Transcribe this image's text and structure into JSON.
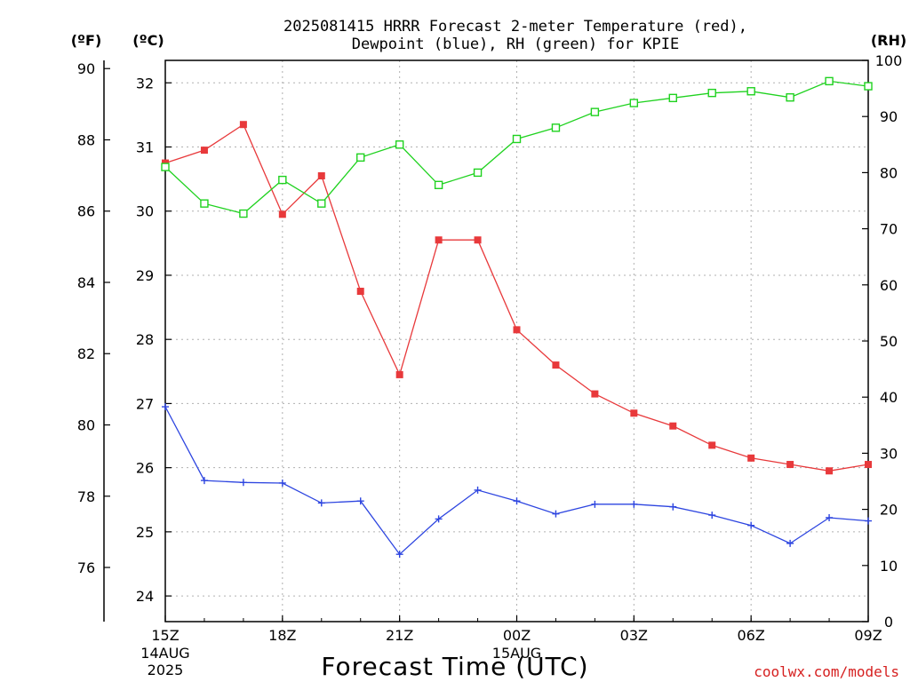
{
  "chart_data": {
    "type": "line",
    "title_line1": "2025081415 HRRR Forecast 2-meter Temperature (red),",
    "title_line2": "Dewpoint (blue), RH (green) for KPIE",
    "xlabel": "Forecast Time (UTC)",
    "credit": "coolwx.com/models",
    "unit_f_label": "(ºF)",
    "unit_c_label": "(ºC)",
    "unit_rh_label": "(RH)",
    "x_ticks": [
      "15Z",
      "18Z",
      "21Z",
      "00Z",
      "03Z",
      "06Z",
      "09Z"
    ],
    "x_tick_hours": [
      0,
      3,
      6,
      9,
      12,
      15,
      18
    ],
    "date_labels": [
      {
        "hour": 0,
        "day": "14AUG",
        "year": "2025"
      },
      {
        "hour": 9,
        "day": "15AUG",
        "year": ""
      }
    ],
    "f_ticks": [
      76,
      78,
      80,
      82,
      84,
      86,
      88,
      90
    ],
    "c_ticks": [
      24,
      25,
      26,
      27,
      28,
      29,
      30,
      31,
      32
    ],
    "rh_ticks": [
      0,
      10,
      20,
      30,
      40,
      50,
      60,
      70,
      80,
      90,
      100
    ],
    "celsius_range": [
      23.6,
      32.35
    ],
    "rh_range": [
      0,
      100
    ],
    "x_range_hours": [
      0,
      18
    ],
    "grid": true,
    "colors": {
      "temperature": "#e8393b",
      "dewpoint": "#2d45e0",
      "rh": "#1fd21f"
    },
    "series": [
      {
        "name": "Temperature",
        "unit": "C",
        "marker": "filled-square",
        "x": [
          0,
          1,
          2,
          3,
          4,
          5,
          6,
          7,
          8,
          9,
          10,
          11,
          12,
          13,
          14,
          15,
          16,
          17,
          18
        ],
        "values": [
          30.75,
          30.95,
          31.35,
          29.95,
          30.55,
          28.75,
          27.45,
          29.55,
          29.55,
          28.15,
          27.6,
          27.15,
          26.85,
          26.65,
          26.35,
          26.15,
          26.05,
          25.95,
          26.05
        ]
      },
      {
        "name": "Dewpoint",
        "unit": "C",
        "marker": "plus",
        "x": [
          0,
          1,
          2,
          3,
          4,
          5,
          6,
          7,
          8,
          9,
          10,
          11,
          12,
          13,
          14,
          15,
          16,
          17,
          18
        ],
        "values": [
          26.95,
          25.8,
          25.77,
          25.76,
          25.45,
          25.48,
          24.65,
          25.2,
          25.65,
          25.48,
          25.28,
          25.43,
          25.43,
          25.39,
          25.26,
          25.1,
          24.82,
          25.22,
          25.17
        ]
      },
      {
        "name": "RH",
        "unit": "%",
        "marker": "open-square",
        "x": [
          0,
          1,
          2,
          3,
          4,
          5,
          6,
          7,
          8,
          9,
          10,
          11,
          12,
          13,
          14,
          15,
          16,
          17,
          18
        ],
        "values": [
          81,
          74.5,
          72.7,
          78.7,
          74.5,
          82.7,
          85,
          77.8,
          80,
          86,
          88,
          90.8,
          92.4,
          93.3,
          94.2,
          94.5,
          93.4,
          96.3,
          95.4
        ]
      }
    ]
  }
}
